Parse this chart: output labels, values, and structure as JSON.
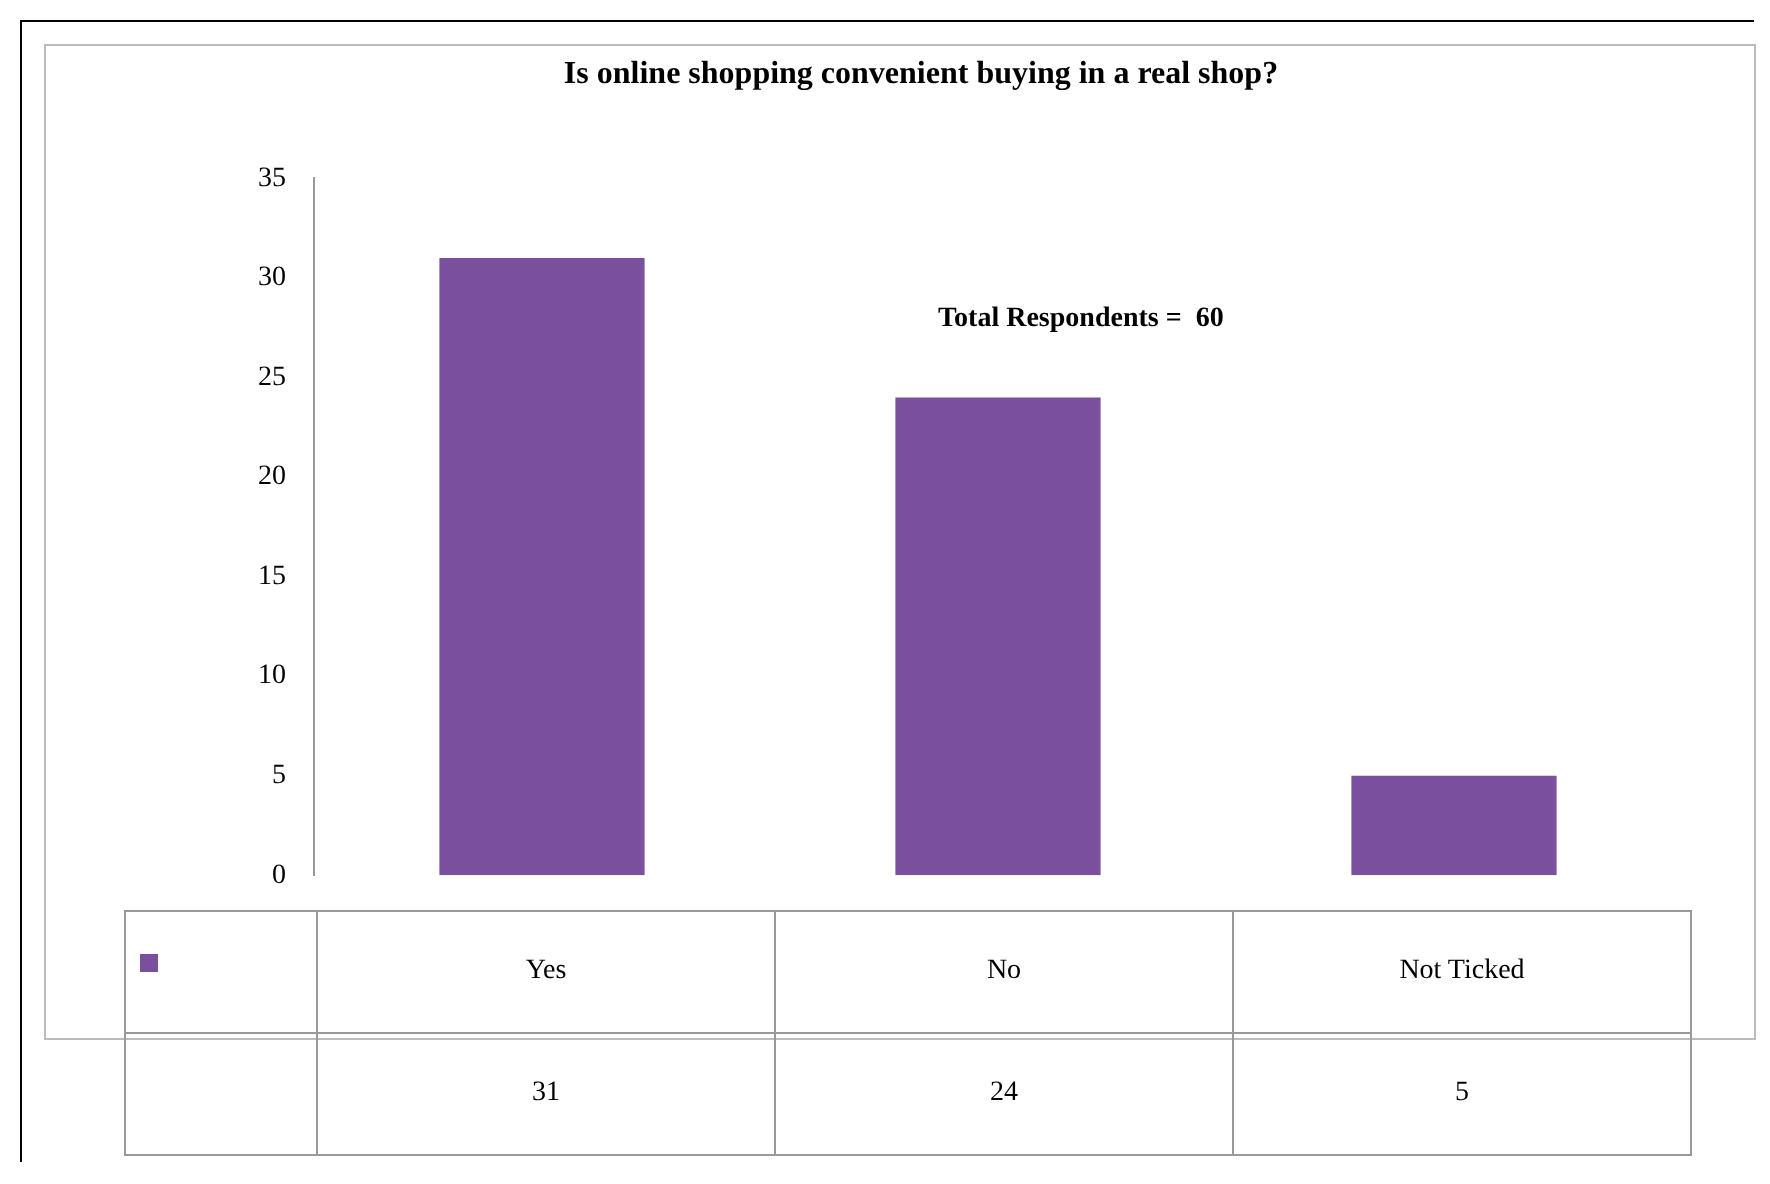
{
  "chart_data": {
    "type": "bar",
    "title": "Is online shopping convenient buying in a real shop?",
    "categories": [
      "Yes",
      "No",
      "Not Ticked"
    ],
    "series": [
      {
        "color": "#7a4f9e",
        "values": [
          31,
          24,
          5
        ]
      }
    ],
    "ylim": [
      0,
      35
    ],
    "yticks": [
      0,
      5,
      10,
      15,
      20,
      25,
      30,
      35
    ],
    "grid": false,
    "data_labels": true,
    "annotations": [
      "Total Respondents =  60"
    ]
  }
}
